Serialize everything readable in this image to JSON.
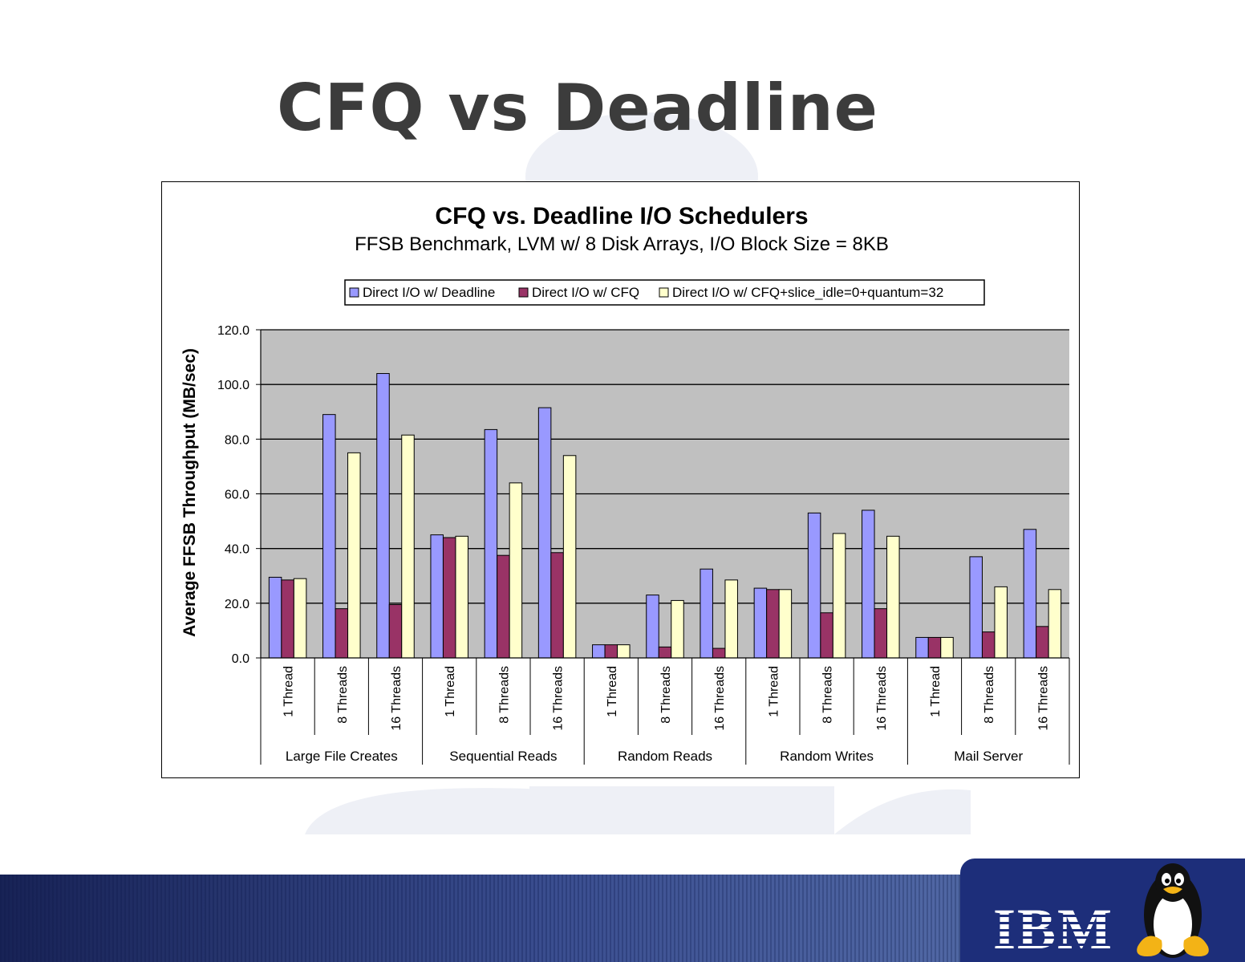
{
  "slide": {
    "title": "CFQ vs Deadline",
    "logo_text": "IBM",
    "logo_icon": "tux-penguin-icon"
  },
  "colors": {
    "deadline": "#9999ff",
    "cfq": "#993366",
    "cfq_tuned": "#ffffcc",
    "plot_bg": "#c0c0c0",
    "footer": "#1d2e7a"
  },
  "chart_data": {
    "type": "bar",
    "title": "CFQ vs. Deadline I/O Schedulers",
    "subtitle": "FFSB Benchmark, LVM w/ 8 Disk Arrays, I/O Block Size = 8KB",
    "ylabel": "Average FFSB Throughput (MB/sec)",
    "xlabel": "",
    "ylim": [
      0,
      120
    ],
    "yticks": [
      "0.0",
      "20.0",
      "40.0",
      "60.0",
      "80.0",
      "100.0",
      "120.0"
    ],
    "grid": true,
    "legend_position": "top",
    "groups": [
      "Large File Creates",
      "Sequential Reads",
      "Random Reads",
      "Random Writes",
      "Mail Server"
    ],
    "categories": [
      "1 Thread",
      "8 Threads",
      "16 Threads",
      "1 Thread",
      "8 Threads",
      "16 Threads",
      "1 Thread",
      "8 Threads",
      "16 Threads",
      "1 Thread",
      "8 Threads",
      "16 Threads",
      "1 Thread",
      "8 Threads",
      "16 Threads"
    ],
    "series": [
      {
        "name": "Direct I/O w/ Deadline",
        "values": [
          29.5,
          89,
          104,
          45,
          83.5,
          91.5,
          4.8,
          23,
          32.5,
          25.5,
          53,
          54,
          7.5,
          37,
          47
        ]
      },
      {
        "name": "Direct I/O w/ CFQ",
        "values": [
          28.5,
          18,
          19.5,
          44,
          37.5,
          38.5,
          4.8,
          4,
          3.5,
          25,
          16.5,
          18,
          7.5,
          9.5,
          11.5
        ]
      },
      {
        "name": "Direct I/O w/ CFQ+slice_idle=0+quantum=32",
        "values": [
          29,
          75,
          81.5,
          44.5,
          64,
          74,
          4.8,
          21,
          28.5,
          25,
          45.5,
          44.5,
          7.5,
          26,
          25
        ]
      }
    ]
  }
}
